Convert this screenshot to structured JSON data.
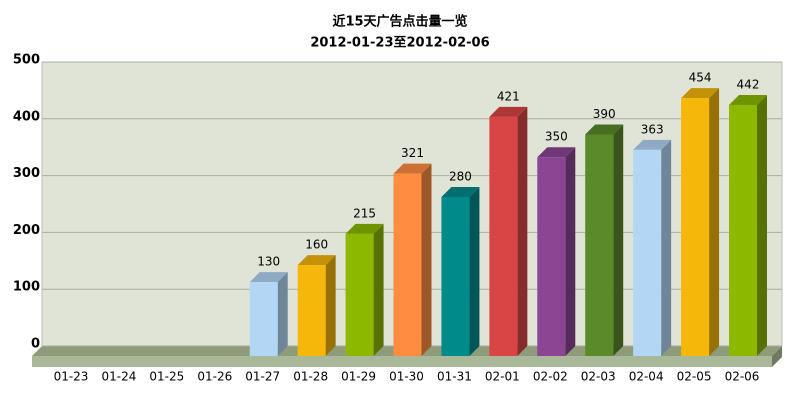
{
  "chart_data": {
    "type": "bar3d",
    "title": "近15天广告点击量一览",
    "subtitle": "2012-01-23至2012-02-06",
    "categories": [
      "01-23",
      "01-24",
      "01-25",
      "01-26",
      "01-27",
      "01-28",
      "01-29",
      "01-30",
      "01-31",
      "02-01",
      "02-02",
      "02-03",
      "02-04",
      "02-05",
      "02-06"
    ],
    "values": [
      0,
      0,
      0,
      0,
      130,
      160,
      215,
      321,
      280,
      421,
      350,
      390,
      363,
      454,
      442
    ],
    "colors": [
      "#008b8b",
      "#d94545",
      "#8b4593",
      "#5a8a2a",
      "#b3d6f5",
      "#f5b70a",
      "#8cb800",
      "#ff8c40",
      "#008b8b",
      "#d94545",
      "#8b4593",
      "#5a8a2a",
      "#b3d6f5",
      "#f5b70a",
      "#8cb800"
    ],
    "ylim": [
      0,
      500
    ],
    "yticks": [
      0,
      100,
      200,
      300,
      400,
      500
    ],
    "grid": true
  }
}
